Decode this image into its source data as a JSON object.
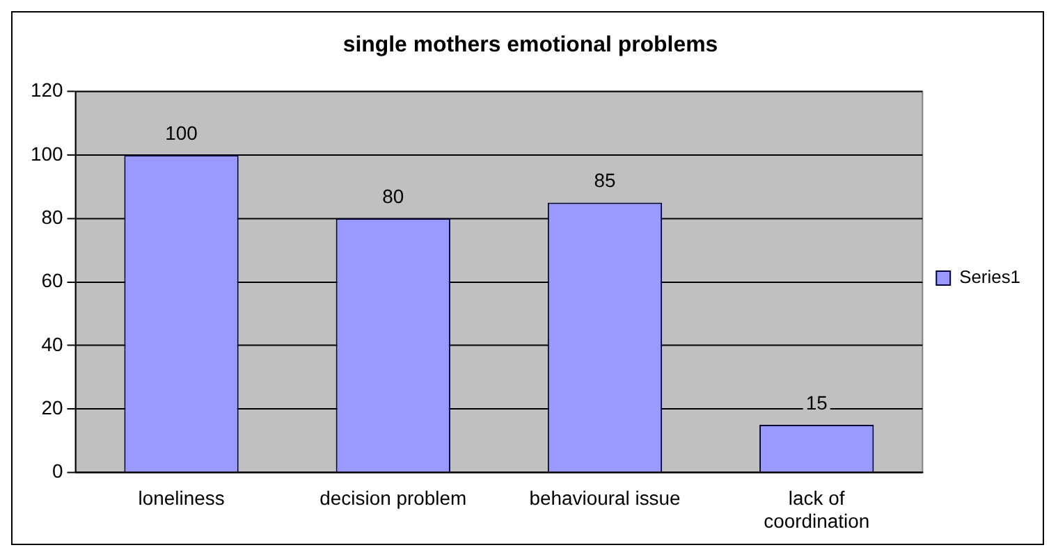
{
  "chart_data": {
    "type": "bar",
    "title": "single mothers emotional problems",
    "categories": [
      "loneliness",
      "decision problem",
      "behavioural issue",
      "lack of coordination"
    ],
    "series": [
      {
        "name": "Series1",
        "color": "#9999ff",
        "values": [
          100,
          80,
          85,
          15
        ]
      }
    ],
    "ylim": [
      0,
      120
    ],
    "yticks": [
      0,
      20,
      40,
      60,
      80,
      100,
      120
    ],
    "grid": "y",
    "legend": "right",
    "data_labels": true
  }
}
